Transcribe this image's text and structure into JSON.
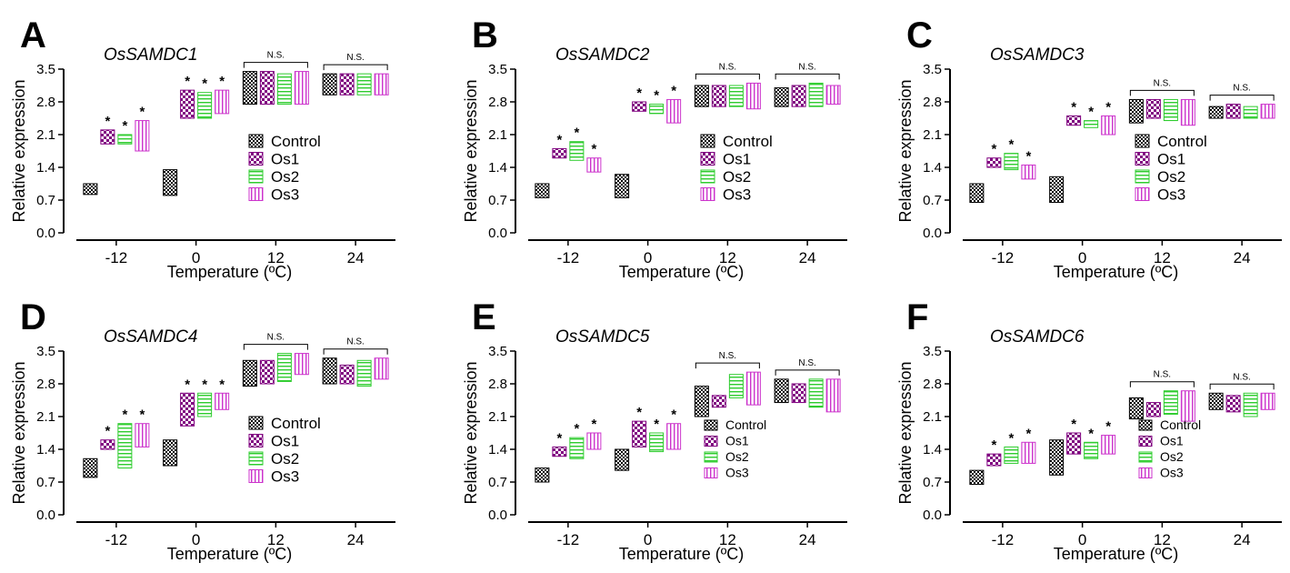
{
  "colors": {
    "control": "#000000",
    "os1": "#800080",
    "os2": "#2ecc2e",
    "os3": "#cc33cc",
    "axis": "#000000"
  },
  "chart_data": [
    {
      "type": "box",
      "panel": "A",
      "title": "OsSAMDC1",
      "xlabel": "Temperature (ºC)",
      "ylabel": "Relative expression",
      "categories": [
        "-12",
        "0",
        "12",
        "24"
      ],
      "ylim": [
        0.0,
        3.5
      ],
      "yticks": [
        "0.0",
        "0.7",
        "1.4",
        "2.1",
        "2.8",
        "3.5"
      ],
      "legend": [
        "Control",
        "Os1",
        "Os2",
        "Os3"
      ],
      "legend_size": "large",
      "ns_label": "N.S.",
      "star_label": "*",
      "series": [
        {
          "name": "Control",
          "ranges": [
            [
              0.82,
              1.05
            ],
            [
              0.8,
              1.35
            ],
            [
              2.75,
              3.45
            ],
            [
              2.95,
              3.4
            ]
          ],
          "stars": [
            false,
            false,
            false,
            false
          ]
        },
        {
          "name": "Os1",
          "ranges": [
            [
              1.9,
              2.2
            ],
            [
              2.45,
              3.05
            ],
            [
              2.75,
              3.45
            ],
            [
              2.95,
              3.4
            ]
          ],
          "stars": [
            true,
            true,
            false,
            false
          ]
        },
        {
          "name": "Os2",
          "ranges": [
            [
              1.9,
              2.1
            ],
            [
              2.45,
              3.0
            ],
            [
              2.75,
              3.4
            ],
            [
              2.95,
              3.4
            ]
          ],
          "stars": [
            true,
            true,
            false,
            false
          ]
        },
        {
          "name": "Os3",
          "ranges": [
            [
              1.75,
              2.4
            ],
            [
              2.55,
              3.05
            ],
            [
              2.75,
              3.45
            ],
            [
              2.95,
              3.4
            ]
          ],
          "stars": [
            true,
            true,
            false,
            false
          ]
        }
      ]
    },
    {
      "type": "box",
      "panel": "B",
      "title": "OsSAMDC2",
      "xlabel": "Temperature (ºC)",
      "ylabel": "Relative expression",
      "categories": [
        "-12",
        "0",
        "12",
        "24"
      ],
      "ylim": [
        0.0,
        3.5
      ],
      "yticks": [
        "0.0",
        "0.7",
        "1.4",
        "2.1",
        "2.8",
        "3.5"
      ],
      "legend": [
        "Control",
        "Os1",
        "Os2",
        "Os3"
      ],
      "legend_size": "large",
      "ns_label": "N.S.",
      "star_label": "*",
      "series": [
        {
          "name": "Control",
          "ranges": [
            [
              0.75,
              1.05
            ],
            [
              0.75,
              1.25
            ],
            [
              2.7,
              3.15
            ],
            [
              2.7,
              3.1
            ]
          ],
          "stars": [
            false,
            false,
            false,
            false
          ]
        },
        {
          "name": "Os1",
          "ranges": [
            [
              1.6,
              1.8
            ],
            [
              2.6,
              2.8
            ],
            [
              2.7,
              3.15
            ],
            [
              2.7,
              3.15
            ]
          ],
          "stars": [
            true,
            true,
            false,
            false
          ]
        },
        {
          "name": "Os2",
          "ranges": [
            [
              1.55,
              1.95
            ],
            [
              2.55,
              2.75
            ],
            [
              2.7,
              3.15
            ],
            [
              2.7,
              3.2
            ]
          ],
          "stars": [
            true,
            true,
            false,
            false
          ]
        },
        {
          "name": "Os3",
          "ranges": [
            [
              1.3,
              1.6
            ],
            [
              2.35,
              2.85
            ],
            [
              2.65,
              3.2
            ],
            [
              2.75,
              3.15
            ]
          ],
          "stars": [
            true,
            true,
            false,
            false
          ]
        }
      ]
    },
    {
      "type": "box",
      "panel": "C",
      "title": "OsSAMDC3",
      "xlabel": "Temperature (ºC)",
      "ylabel": "Relative expression",
      "categories": [
        "-12",
        "0",
        "12",
        "24"
      ],
      "ylim": [
        0.0,
        3.5
      ],
      "yticks": [
        "0.0",
        "0.7",
        "1.4",
        "2.1",
        "2.8",
        "3.5"
      ],
      "legend": [
        "Control",
        "Os1",
        "Os2",
        "Os3"
      ],
      "legend_size": "large",
      "ns_label": "N.S.",
      "star_label": "*",
      "series": [
        {
          "name": "Control",
          "ranges": [
            [
              0.65,
              1.05
            ],
            [
              0.65,
              1.2
            ],
            [
              2.35,
              2.85
            ],
            [
              2.45,
              2.7
            ]
          ],
          "stars": [
            false,
            false,
            false,
            false
          ]
        },
        {
          "name": "Os1",
          "ranges": [
            [
              1.4,
              1.6
            ],
            [
              2.3,
              2.5
            ],
            [
              2.45,
              2.85
            ],
            [
              2.45,
              2.75
            ]
          ],
          "stars": [
            true,
            true,
            false,
            false
          ]
        },
        {
          "name": "Os2",
          "ranges": [
            [
              1.35,
              1.7
            ],
            [
              2.25,
              2.4
            ],
            [
              2.4,
              2.85
            ],
            [
              2.45,
              2.7
            ]
          ],
          "stars": [
            true,
            true,
            false,
            false
          ]
        },
        {
          "name": "Os3",
          "ranges": [
            [
              1.15,
              1.45
            ],
            [
              2.1,
              2.5
            ],
            [
              2.3,
              2.85
            ],
            [
              2.45,
              2.75
            ]
          ],
          "stars": [
            true,
            true,
            false,
            false
          ]
        }
      ]
    },
    {
      "type": "box",
      "panel": "D",
      "title": "OsSAMDC4",
      "xlabel": "Temperature (ºC)",
      "ylabel": "Relative expression",
      "categories": [
        "-12",
        "0",
        "12",
        "24"
      ],
      "ylim": [
        0.0,
        3.5
      ],
      "yticks": [
        "0.0",
        "0.7",
        "1.4",
        "2.1",
        "2.8",
        "3.5"
      ],
      "legend": [
        "Control",
        "Os1",
        "Os2",
        "Os3"
      ],
      "legend_size": "large",
      "ns_label": "N.S.",
      "star_label": "*",
      "series": [
        {
          "name": "Control",
          "ranges": [
            [
              0.8,
              1.2
            ],
            [
              1.05,
              1.6
            ],
            [
              2.75,
              3.3
            ],
            [
              2.8,
              3.35
            ]
          ],
          "stars": [
            false,
            false,
            false,
            false
          ]
        },
        {
          "name": "Os1",
          "ranges": [
            [
              1.4,
              1.6
            ],
            [
              1.9,
              2.6
            ],
            [
              2.8,
              3.3
            ],
            [
              2.8,
              3.2
            ]
          ],
          "stars": [
            true,
            true,
            false,
            false
          ]
        },
        {
          "name": "Os2",
          "ranges": [
            [
              1.0,
              1.95
            ],
            [
              2.1,
              2.6
            ],
            [
              2.85,
              3.45
            ],
            [
              2.75,
              3.3
            ]
          ],
          "stars": [
            true,
            true,
            false,
            false
          ]
        },
        {
          "name": "Os3",
          "ranges": [
            [
              1.45,
              1.95
            ],
            [
              2.25,
              2.6
            ],
            [
              3.0,
              3.45
            ],
            [
              2.9,
              3.35
            ]
          ],
          "stars": [
            true,
            true,
            false,
            false
          ]
        }
      ]
    },
    {
      "type": "box",
      "panel": "E",
      "title": "OsSAMDC5",
      "xlabel": "Temperature (ºC)",
      "ylabel": "Relative expression",
      "categories": [
        "-12",
        "0",
        "12",
        "24"
      ],
      "ylim": [
        0.0,
        3.5
      ],
      "yticks": [
        "0.0",
        "0.7",
        "1.4",
        "2.1",
        "2.8",
        "3.5"
      ],
      "legend": [
        "Control",
        "Os1",
        "Os2",
        "Os3"
      ],
      "legend_size": "small",
      "ns_label": "N.S.",
      "star_label": "*",
      "series": [
        {
          "name": "Control",
          "ranges": [
            [
              0.7,
              1.0
            ],
            [
              0.95,
              1.4
            ],
            [
              2.1,
              2.75
            ],
            [
              2.4,
              2.9
            ]
          ],
          "stars": [
            false,
            false,
            false,
            false
          ]
        },
        {
          "name": "Os1",
          "ranges": [
            [
              1.25,
              1.45
            ],
            [
              1.45,
              2.0
            ],
            [
              2.3,
              2.55
            ],
            [
              2.4,
              2.8
            ]
          ],
          "stars": [
            true,
            true,
            false,
            false
          ]
        },
        {
          "name": "Os2",
          "ranges": [
            [
              1.2,
              1.65
            ],
            [
              1.35,
              1.75
            ],
            [
              2.5,
              3.0
            ],
            [
              2.3,
              2.9
            ]
          ],
          "stars": [
            true,
            true,
            false,
            false
          ]
        },
        {
          "name": "Os3",
          "ranges": [
            [
              1.4,
              1.75
            ],
            [
              1.4,
              1.95
            ],
            [
              2.35,
              3.05
            ],
            [
              2.2,
              2.9
            ]
          ],
          "stars": [
            true,
            true,
            false,
            false
          ]
        }
      ]
    },
    {
      "type": "box",
      "panel": "F",
      "title": "OsSAMDC6",
      "xlabel": "Temperature (ºC)",
      "ylabel": "Relative expression",
      "categories": [
        "-12",
        "0",
        "12",
        "24"
      ],
      "ylim": [
        0.0,
        3.5
      ],
      "yticks": [
        "0.0",
        "0.7",
        "1.4",
        "2.1",
        "2.8",
        "3.5"
      ],
      "legend": [
        "Control",
        "Os1",
        "Os2",
        "Os3"
      ],
      "legend_size": "small",
      "ns_label": "N.S.",
      "star_label": "*",
      "series": [
        {
          "name": "Control",
          "ranges": [
            [
              0.65,
              0.95
            ],
            [
              0.85,
              1.6
            ],
            [
              2.05,
              2.5
            ],
            [
              2.25,
              2.6
            ]
          ],
          "stars": [
            false,
            false,
            false,
            false
          ]
        },
        {
          "name": "Os1",
          "ranges": [
            [
              1.05,
              1.3
            ],
            [
              1.3,
              1.75
            ],
            [
              2.1,
              2.4
            ],
            [
              2.2,
              2.55
            ]
          ],
          "stars": [
            true,
            true,
            false,
            false
          ]
        },
        {
          "name": "Os2",
          "ranges": [
            [
              1.1,
              1.45
            ],
            [
              1.2,
              1.55
            ],
            [
              2.15,
              2.65
            ],
            [
              2.1,
              2.6
            ]
          ],
          "stars": [
            true,
            true,
            false,
            false
          ]
        },
        {
          "name": "Os3",
          "ranges": [
            [
              1.1,
              1.55
            ],
            [
              1.3,
              1.7
            ],
            [
              2.0,
              2.65
            ],
            [
              2.25,
              2.6
            ]
          ],
          "stars": [
            true,
            true,
            false,
            false
          ]
        }
      ]
    }
  ]
}
